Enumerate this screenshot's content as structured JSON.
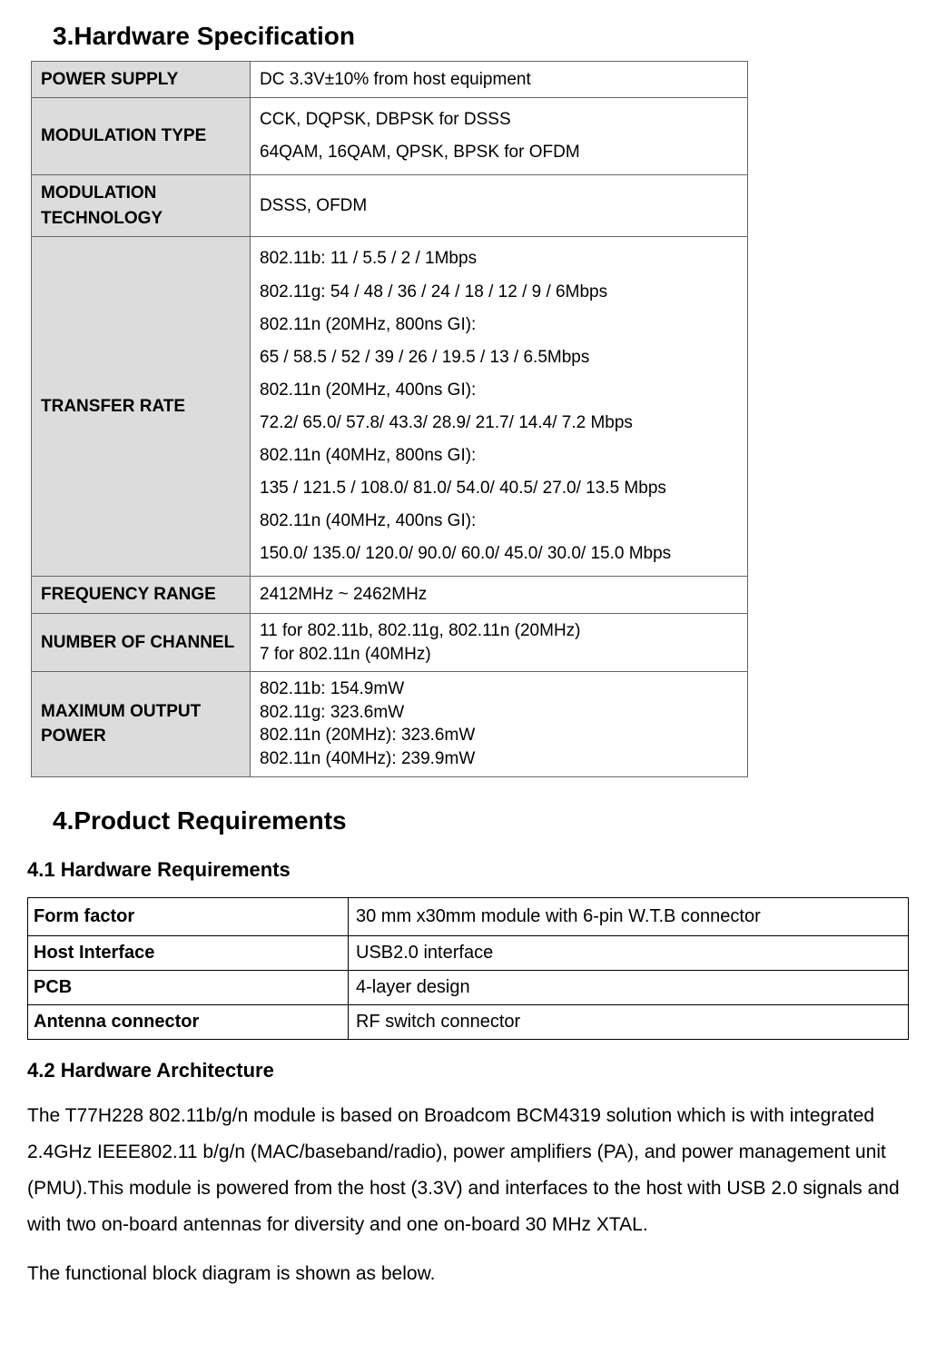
{
  "section3": {
    "heading": "3.Hardware Specification",
    "rows": [
      {
        "label": "POWER SUPPLY",
        "lines": [
          "DC 3.3V±10% from host equipment"
        ],
        "tight": false
      },
      {
        "label": "MODULATION TYPE",
        "lines": [
          "CCK, DQPSK, DBPSK for DSSS",
          "64QAM, 16QAM, QPSK, BPSK for OFDM"
        ],
        "tight": false
      },
      {
        "label": "MODULATION TECHNOLOGY",
        "lines": [
          "DSSS, OFDM"
        ],
        "tight": false
      },
      {
        "label": "TRANSFER RATE",
        "lines": [
          "802.11b: 11 / 5.5 / 2 / 1Mbps",
          "802.11g: 54 / 48 / 36 / 24 / 18 / 12 / 9 / 6Mbps",
          "802.11n (20MHz, 800ns GI):",
          "65 / 58.5 / 52 / 39 / 26 / 19.5 / 13 / 6.5Mbps",
          "802.11n (20MHz, 400ns GI):",
          "72.2/ 65.0/ 57.8/ 43.3/ 28.9/ 21.7/ 14.4/ 7.2 Mbps",
          "802.11n (40MHz, 800ns GI):",
          "135 / 121.5 / 108.0/ 81.0/ 54.0/ 40.5/ 27.0/ 13.5 Mbps",
          "802.11n (40MHz, 400ns GI):",
          "150.0/ 135.0/ 120.0/ 90.0/ 60.0/ 45.0/ 30.0/ 15.0 Mbps"
        ],
        "tight": false
      },
      {
        "label": "FREQUENCY RANGE",
        "lines": [
          "2412MHz ~ 2462MHz"
        ],
        "tight": false
      },
      {
        "label": "NUMBER OF CHANNEL",
        "lines": [
          "11 for 802.11b, 802.11g, 802.11n (20MHz)",
          "7 for 802.11n (40MHz)"
        ],
        "tight": true
      },
      {
        "label": "MAXIMUM OUTPUT POWER",
        "lines": [
          "802.11b: 154.9mW",
          "802.11g: 323.6mW",
          "802.11n (20MHz): 323.6mW",
          "802.11n (40MHz): 239.9mW"
        ],
        "tight": true
      }
    ]
  },
  "section4": {
    "heading": "4.Product Requirements",
    "sub41": {
      "heading": "4.1 Hardware Requirements",
      "rows": [
        {
          "label": "Form factor",
          "value": "30 mm x30mm module with 6-pin W.T.B connector",
          "tall": true
        },
        {
          "label": "Host Interface",
          "value": "USB2.0 interface",
          "tall": false
        },
        {
          "label": "PCB",
          "value": "4-layer design",
          "tall": false
        },
        {
          "label": "Antenna connector",
          "value": "RF switch connector",
          "tall": false
        }
      ]
    },
    "sub42": {
      "heading": "4.2 Hardware Architecture",
      "para1": "The T77H228 802.11b/g/n module is based on Broadcom BCM4319 solution which is with integrated 2.4GHz IEEE802.11 b/g/n (MAC/baseband/radio), power amplifiers (PA), and power management unit (PMU).This module is powered from the host (3.3V) and interfaces to the host with USB 2.0 signals and with two on-board antennas for diversity and one on-board 30 MHz XTAL.",
      "para2": "The functional block diagram is shown as below."
    }
  }
}
